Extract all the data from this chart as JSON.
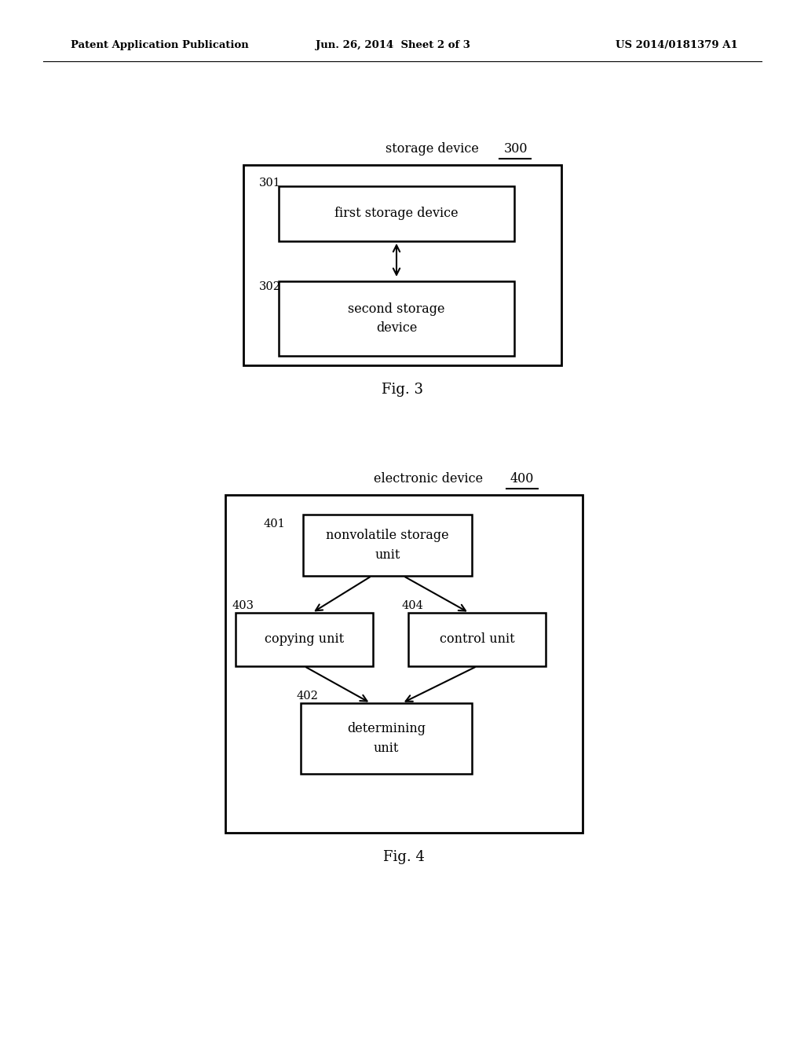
{
  "bg_color": "#ffffff",
  "header_left": "Patent Application Publication",
  "header_mid": "Jun. 26, 2014  Sheet 2 of 3",
  "header_right": "US 2014/0181379 A1",
  "fig3_title": "storage device",
  "fig3_num": "300",
  "fig3_caption": "Fig. 3",
  "fig4_title": "electronic device",
  "fig4_num": "400",
  "fig4_caption": "Fig. 4"
}
